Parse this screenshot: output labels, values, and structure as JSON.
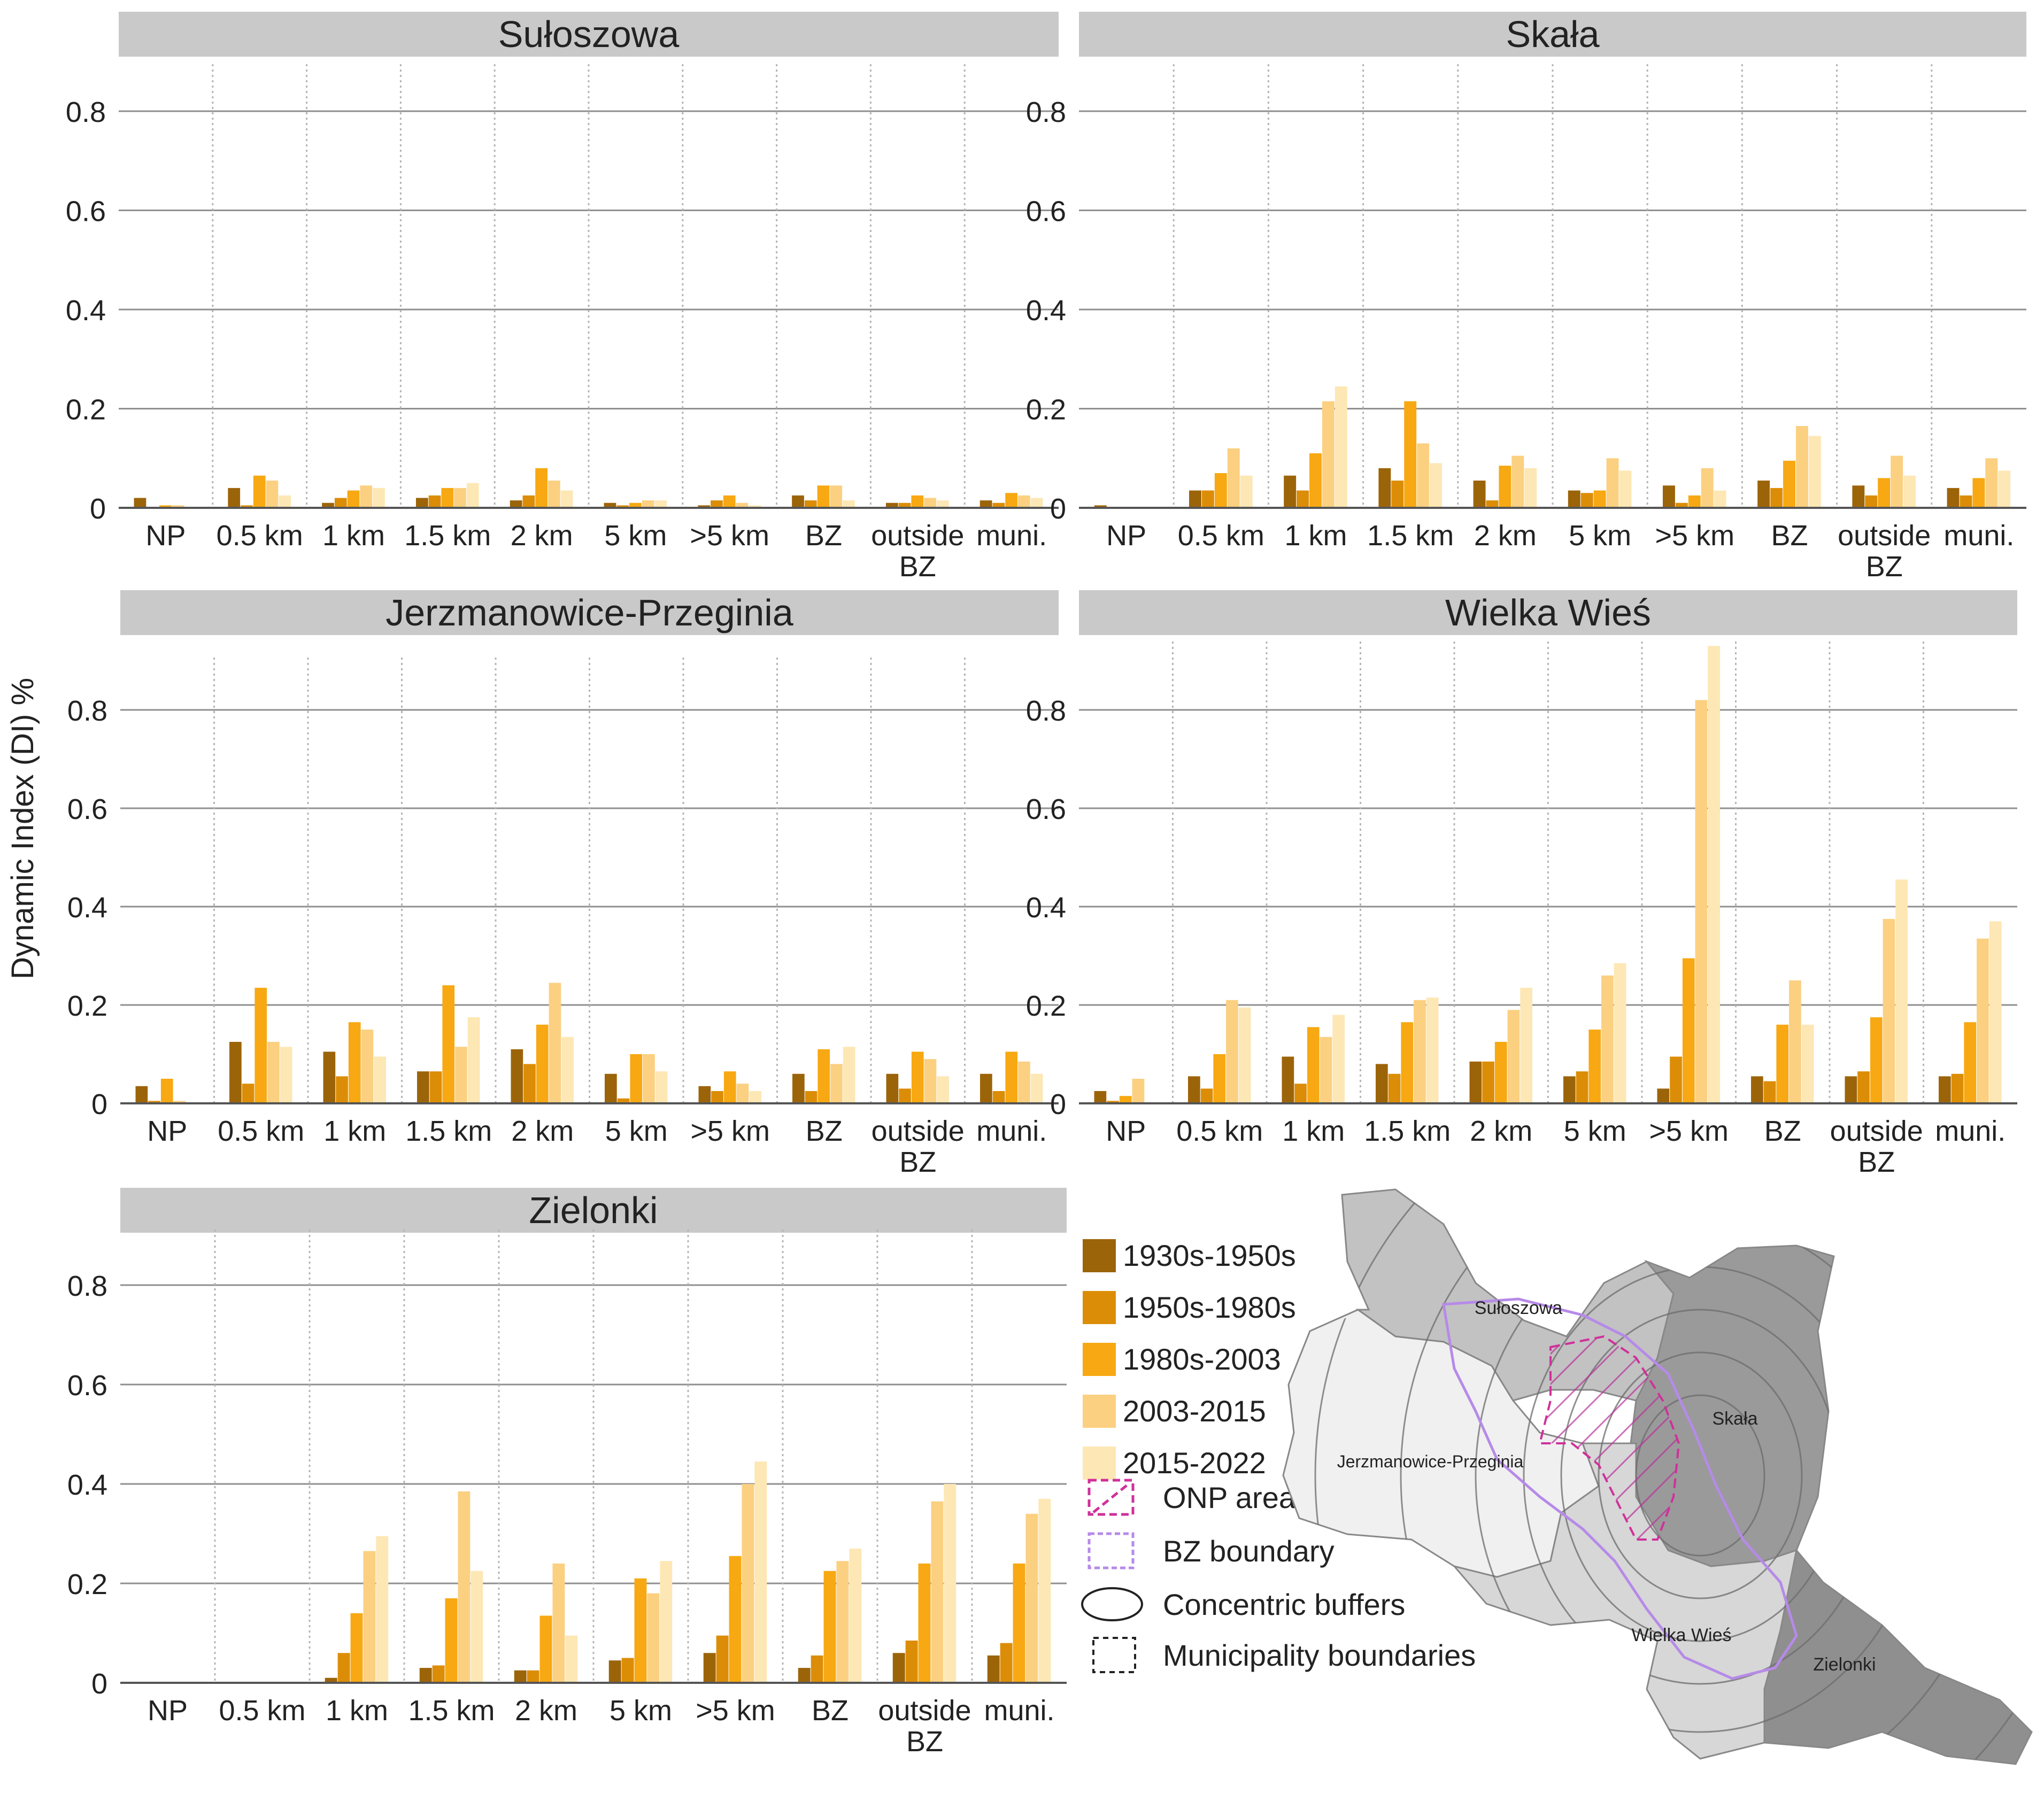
{
  "figure": {
    "ylabel": "Dynamic Index (DI) %",
    "legend": {
      "periods": [
        {
          "label": "1930s-1950s",
          "color": "#9c6409"
        },
        {
          "label": "1950s-1980s",
          "color": "#dc8d07"
        },
        {
          "label": "1980s-2003",
          "color": "#f7a812"
        },
        {
          "label": "2003-2015",
          "color": "#fbd081"
        },
        {
          "label": "2015-2022",
          "color": "#fde7b4"
        }
      ],
      "symbols": [
        {
          "label": "ONP area",
          "icon": "dashed-hatched-magenta-square"
        },
        {
          "label": "BZ boundary",
          "icon": "dashed-violet-square"
        },
        {
          "label": "Concentric buffers",
          "icon": "ellipse"
        },
        {
          "label": "Municipality boundaries",
          "icon": "dashed-black-square"
        }
      ]
    },
    "map": {
      "labels": [
        "Sułoszowa",
        "Skała",
        "Jerzmanowice-Przeginia",
        "Wielka Wieś",
        "Zielonki"
      ]
    }
  },
  "chart_data": [
    {
      "type": "bar",
      "title": "Sułoszowa",
      "categories": [
        "NP",
        "0.5 km",
        "1 km",
        "1.5 km",
        "2 km",
        "5 km",
        ">5 km",
        "BZ",
        "outside BZ",
        "muni."
      ],
      "yticks": [
        "0",
        "0.2",
        "0.4",
        "0.6",
        "0.8"
      ],
      "ylim": [
        0,
        0.9
      ],
      "series": [
        {
          "name": "1930s-1950s",
          "values": [
            0.02,
            0.04,
            0.01,
            0.02,
            0.015,
            0.01,
            0.005,
            0.025,
            0.01,
            0.015
          ]
        },
        {
          "name": "1950s-1980s",
          "values": [
            0,
            0.005,
            0.02,
            0.025,
            0.025,
            0.005,
            0.015,
            0.015,
            0.01,
            0.01
          ]
        },
        {
          "name": "1980s-2003",
          "values": [
            0.005,
            0.065,
            0.035,
            0.04,
            0.08,
            0.01,
            0.025,
            0.045,
            0.025,
            0.03
          ]
        },
        {
          "name": "2003-2015",
          "values": [
            0.005,
            0.055,
            0.045,
            0.04,
            0.055,
            0.015,
            0.01,
            0.045,
            0.02,
            0.025
          ]
        },
        {
          "name": "2015-2022",
          "values": [
            0,
            0.025,
            0.04,
            0.05,
            0.035,
            0.015,
            0.005,
            0.015,
            0.015,
            0.02
          ]
        }
      ]
    },
    {
      "type": "bar",
      "title": "Skała",
      "categories": [
        "NP",
        "0.5 km",
        "1 km",
        "1.5 km",
        "2 km",
        "5 km",
        ">5 km",
        "BZ",
        "outside BZ",
        "muni."
      ],
      "yticks": [
        "0",
        "0.2",
        "0.4",
        "0.6",
        "0.8"
      ],
      "ylim": [
        0,
        0.9
      ],
      "series": [
        {
          "name": "1930s-1950s",
          "values": [
            0.005,
            0.035,
            0.065,
            0.08,
            0.055,
            0.035,
            0.045,
            0.055,
            0.045,
            0.04
          ]
        },
        {
          "name": "1950s-1980s",
          "values": [
            0.002,
            0.035,
            0.035,
            0.055,
            0.015,
            0.03,
            0.01,
            0.04,
            0.025,
            0.025
          ]
        },
        {
          "name": "1980s-2003",
          "values": [
            0,
            0.07,
            0.11,
            0.215,
            0.085,
            0.035,
            0.025,
            0.095,
            0.06,
            0.06
          ]
        },
        {
          "name": "2003-2015",
          "values": [
            0,
            0.12,
            0.215,
            0.13,
            0.105,
            0.1,
            0.08,
            0.165,
            0.105,
            0.1
          ]
        },
        {
          "name": "2015-2022",
          "values": [
            0,
            0.065,
            0.245,
            0.09,
            0.08,
            0.075,
            0.035,
            0.145,
            0.065,
            0.075
          ]
        }
      ]
    },
    {
      "type": "bar",
      "title": "Jerzmanowice-Przeginia",
      "categories": [
        "NP",
        "0.5 km",
        "1 km",
        "1.5 km",
        "2 km",
        "5 km",
        ">5 km",
        "BZ",
        "outside BZ",
        "muni."
      ],
      "yticks": [
        "0",
        "0.2",
        "0.4",
        "0.6",
        "0.8"
      ],
      "ylim": [
        0,
        0.9
      ],
      "series": [
        {
          "name": "1930s-1950s",
          "values": [
            0.035,
            0.125,
            0.105,
            0.065,
            0.11,
            0.06,
            0.035,
            0.06,
            0.06,
            0.06
          ]
        },
        {
          "name": "1950s-1980s",
          "values": [
            0.005,
            0.04,
            0.055,
            0.065,
            0.08,
            0.01,
            0.025,
            0.025,
            0.03,
            0.025
          ]
        },
        {
          "name": "1980s-2003",
          "values": [
            0.05,
            0.235,
            0.165,
            0.24,
            0.16,
            0.1,
            0.065,
            0.11,
            0.105,
            0.105
          ]
        },
        {
          "name": "2003-2015",
          "values": [
            0.005,
            0.125,
            0.15,
            0.115,
            0.245,
            0.1,
            0.04,
            0.08,
            0.09,
            0.085
          ]
        },
        {
          "name": "2015-2022",
          "values": [
            0,
            0.115,
            0.095,
            0.175,
            0.135,
            0.065,
            0.025,
            0.115,
            0.055,
            0.06
          ]
        }
      ]
    },
    {
      "type": "bar",
      "title": "Wielka Wieś",
      "categories": [
        "NP",
        "0.5 km",
        "1 km",
        "1.5 km",
        "2 km",
        "5 km",
        ">5 km",
        "BZ",
        "outside BZ",
        "muni."
      ],
      "yticks": [
        "0",
        "0.2",
        "0.4",
        "0.6",
        "0.8"
      ],
      "ylim": [
        0,
        0.9
      ],
      "series": [
        {
          "name": "1930s-1950s",
          "values": [
            0.025,
            0.055,
            0.095,
            0.08,
            0.085,
            0.055,
            0.03,
            0.055,
            0.055,
            0.055
          ]
        },
        {
          "name": "1950s-1980s",
          "values": [
            0.005,
            0.03,
            0.04,
            0.06,
            0.085,
            0.065,
            0.095,
            0.045,
            0.065,
            0.06
          ]
        },
        {
          "name": "1980s-2003",
          "values": [
            0.015,
            0.1,
            0.155,
            0.165,
            0.125,
            0.15,
            0.295,
            0.16,
            0.175,
            0.165
          ]
        },
        {
          "name": "2003-2015",
          "values": [
            0.05,
            0.21,
            0.135,
            0.21,
            0.19,
            0.26,
            0.82,
            0.25,
            0.375,
            0.335
          ]
        },
        {
          "name": "2015-2022",
          "values": [
            0,
            0.195,
            0.18,
            0.215,
            0.235,
            0.285,
            0.93,
            0.16,
            0.455,
            0.37
          ]
        }
      ]
    },
    {
      "type": "bar",
      "title": "Zielonki",
      "categories": [
        "NP",
        "0.5 km",
        "1 km",
        "1.5 km",
        "2 km",
        "5 km",
        ">5 km",
        "BZ",
        "outside BZ",
        "muni."
      ],
      "yticks": [
        "0",
        "0.2",
        "0.4",
        "0.6",
        "0.8"
      ],
      "ylim": [
        0,
        0.9
      ],
      "series": [
        {
          "name": "1930s-1950s",
          "values": [
            0,
            0,
            0.01,
            0.03,
            0.025,
            0.045,
            0.06,
            0.03,
            0.06,
            0.055
          ]
        },
        {
          "name": "1950s-1980s",
          "values": [
            0,
            0,
            0.06,
            0.035,
            0.025,
            0.05,
            0.095,
            0.055,
            0.085,
            0.08
          ]
        },
        {
          "name": "1980s-2003",
          "values": [
            0,
            0,
            0.14,
            0.17,
            0.135,
            0.21,
            0.255,
            0.225,
            0.24,
            0.24
          ]
        },
        {
          "name": "2003-2015",
          "values": [
            0,
            0,
            0.265,
            0.385,
            0.24,
            0.18,
            0.4,
            0.245,
            0.365,
            0.34
          ]
        },
        {
          "name": "2015-2022",
          "values": [
            0,
            0,
            0.295,
            0.225,
            0.095,
            0.245,
            0.445,
            0.27,
            0.4,
            0.37
          ]
        }
      ]
    }
  ]
}
